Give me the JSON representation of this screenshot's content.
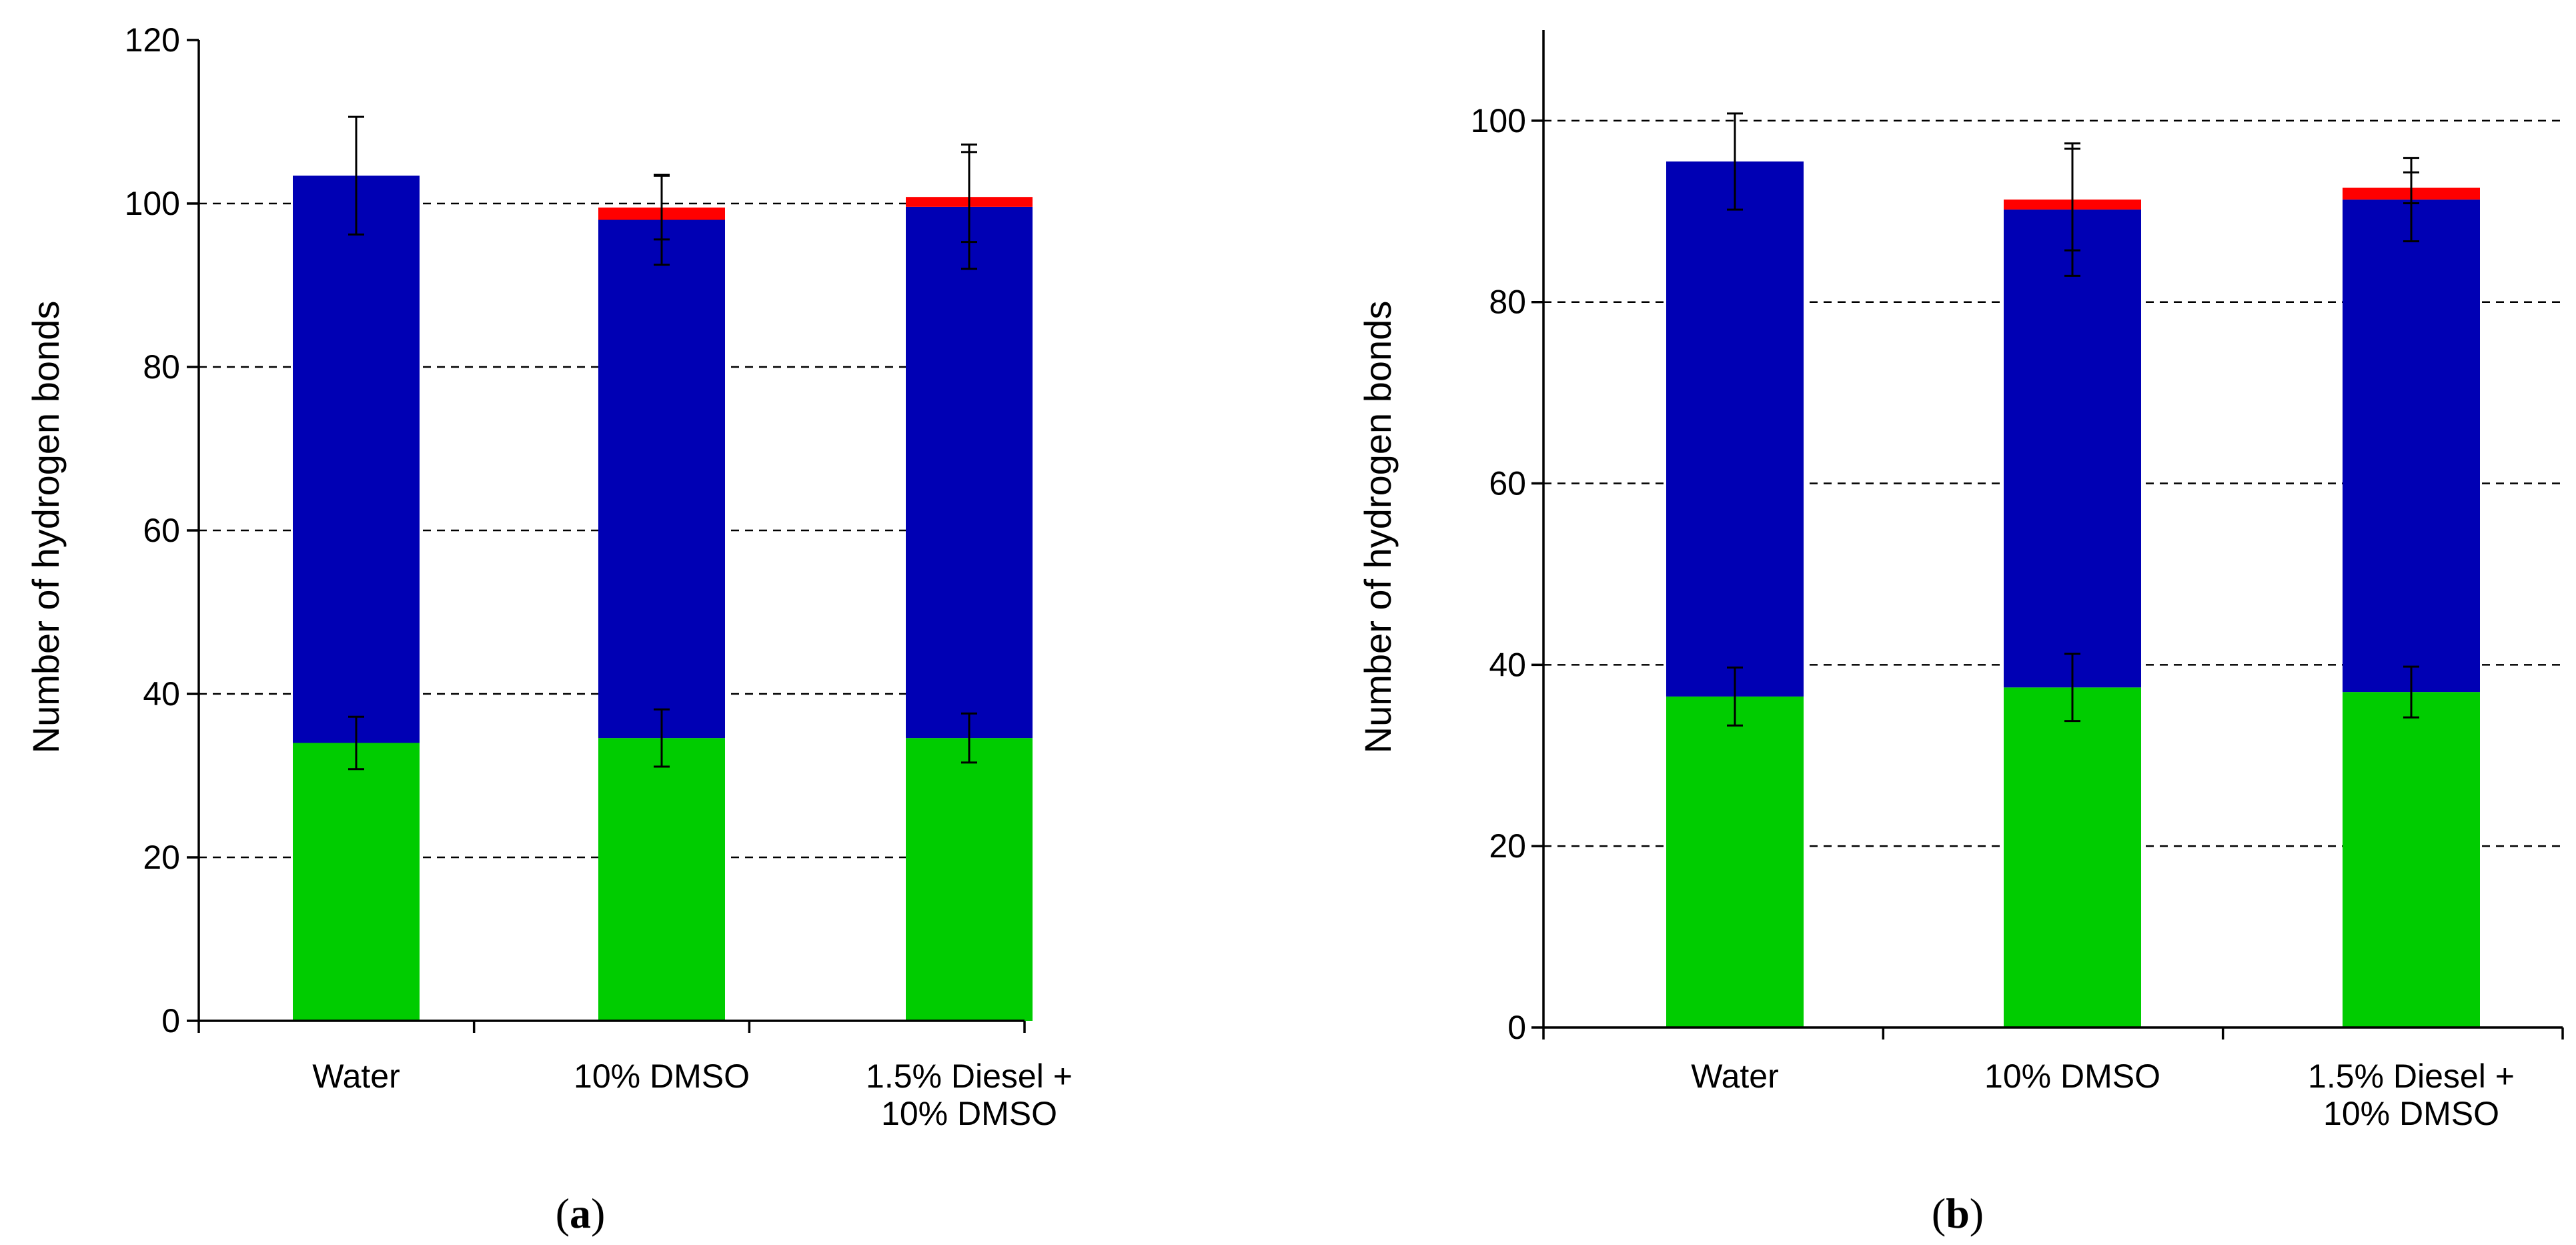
{
  "chart_data": [
    {
      "type": "bar",
      "stacked": true,
      "panel_label": {
        "open": "(",
        "letter": "a",
        "close": ")"
      },
      "ylabel": "Number  of hydrogen bonds",
      "ylim": [
        0,
        120
      ],
      "yticks": [
        "0",
        "20",
        "40",
        "60",
        "80",
        "100",
        "120"
      ],
      "gridlines": [
        20,
        40,
        60,
        80,
        100
      ],
      "grid": "dashed horizontal",
      "categories": [
        [
          "Water"
        ],
        [
          "10% DMSO"
        ],
        [
          "1.5% Diesel +",
          "10% DMSO"
        ]
      ],
      "series": [
        {
          "name": "green",
          "color": "#00cc00",
          "values": [
            34,
            34.6,
            34.6
          ],
          "errors": [
            3.2,
            3.5,
            3.0
          ]
        },
        {
          "name": "blue",
          "color": "#0000b4",
          "values": [
            69.4,
            63.4,
            65.0
          ],
          "errors": [
            7.2,
            5.5,
            7.6
          ]
        },
        {
          "name": "red",
          "color": "#ff0000",
          "values": [
            0,
            1.5,
            1.2
          ],
          "errors": [
            0,
            3.9,
            5.5
          ]
        }
      ]
    },
    {
      "type": "bar",
      "stacked": true,
      "panel_label": {
        "open": "(",
        "letter": "b",
        "close": ")"
      },
      "ylabel": "Number  of hydrogen bonds",
      "ylim": [
        0,
        110
      ],
      "yticks": [
        "0",
        "20",
        "40",
        "60",
        "80",
        "100"
      ],
      "gridlines": [
        20,
        40,
        60,
        80,
        100
      ],
      "grid": "dashed horizontal",
      "categories": [
        [
          "Water"
        ],
        [
          "10% DMSO"
        ],
        [
          "1.5% Diesel +",
          "10% DMSO"
        ]
      ],
      "series": [
        {
          "name": "green",
          "color": "#00cc00",
          "values": [
            36.5,
            37.5,
            37.0
          ],
          "errors": [
            3.2,
            3.7,
            2.8
          ]
        },
        {
          "name": "blue",
          "color": "#0000b4",
          "values": [
            59.0,
            52.7,
            54.3
          ],
          "errors": [
            5.3,
            7.3,
            4.6
          ]
        },
        {
          "name": "red",
          "color": "#ff0000",
          "values": [
            0,
            1.1,
            1.3
          ],
          "errors": [
            0,
            5.6,
            1.7
          ]
        }
      ]
    }
  ]
}
